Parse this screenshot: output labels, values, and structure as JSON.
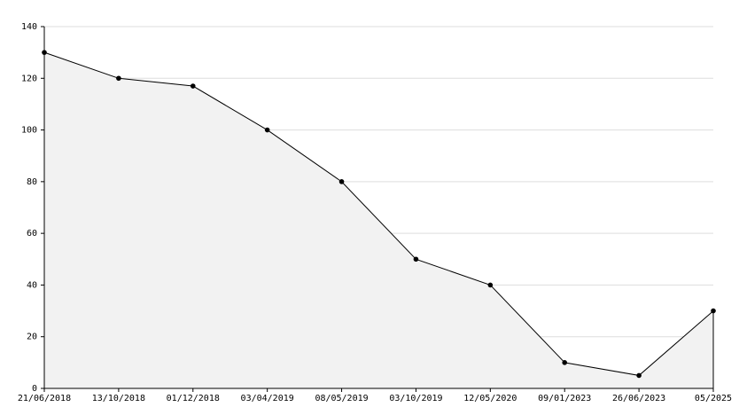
{
  "chart_data": {
    "type": "area",
    "categories": [
      "21/06/2018",
      "13/10/2018",
      "01/12/2018",
      "03/04/2019",
      "08/05/2019",
      "03/10/2019",
      "12/05/2020",
      "09/01/2023",
      "26/06/2023",
      "05/2025"
    ],
    "values": [
      130,
      120,
      117,
      100,
      80,
      50,
      40,
      10,
      5,
      30
    ],
    "color": "#000000",
    "fill": "#f2f2f2",
    "ylim": [
      0,
      140
    ],
    "yticks": [
      0,
      20,
      40,
      60,
      80,
      100,
      120,
      140
    ],
    "grid": true
  }
}
